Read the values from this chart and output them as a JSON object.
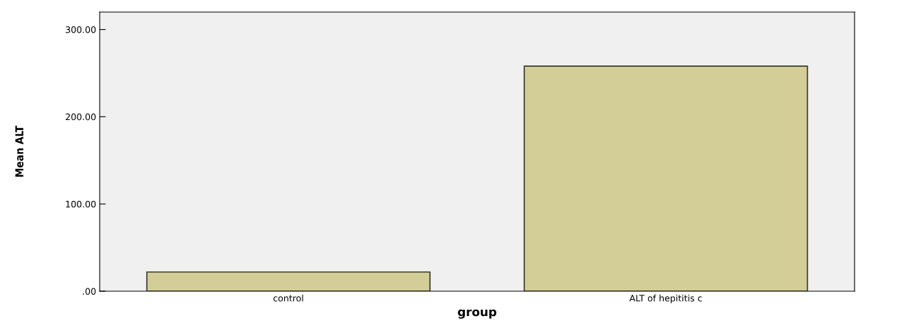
{
  "chart_data": {
    "type": "bar",
    "xlabel": "group",
    "ylabel": "Mean ALT",
    "categories": [
      "control",
      "ALT of hepititis c"
    ],
    "values": [
      22,
      258
    ],
    "color": "#d3cd98",
    "ylim": [
      0,
      320
    ],
    "yticks": [
      {
        "value": 0,
        "label": ".00"
      },
      {
        "value": 100,
        "label": "100.00"
      },
      {
        "value": 200,
        "label": "200.00"
      },
      {
        "value": 300,
        "label": "300.00"
      }
    ],
    "grid": false
  }
}
